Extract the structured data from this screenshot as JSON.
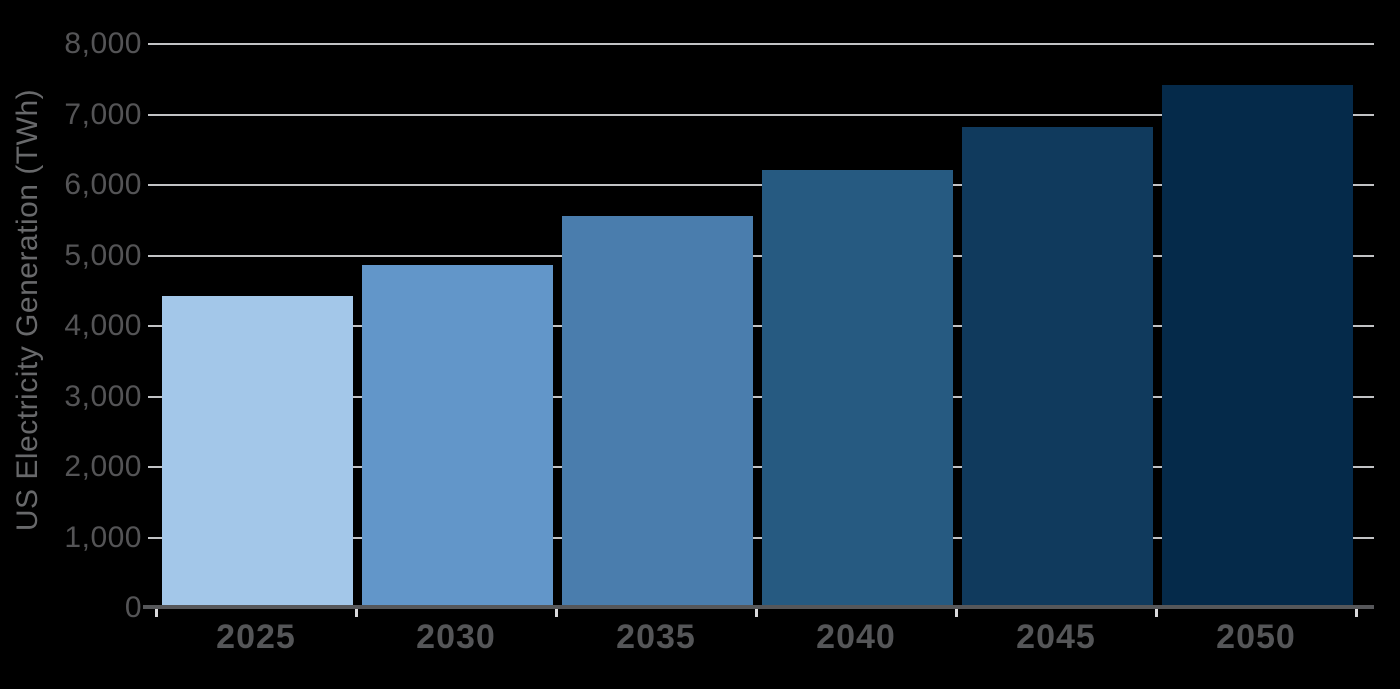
{
  "chart_data": {
    "type": "bar",
    "title": "",
    "ylabel": "US Electricity Generation (TWh)",
    "xlabel": "",
    "categories": [
      "2025",
      "2030",
      "2035",
      "2040",
      "2045",
      "2050"
    ],
    "values": [
      4400,
      4830,
      5530,
      6180,
      6800,
      7390
    ],
    "series": [
      {
        "name": "US Electricity Generation (TWh)",
        "values": [
          4400,
          4830,
          5530,
          6180,
          6800,
          7390
        ]
      }
    ],
    "ylim": [
      0,
      8000
    ],
    "ytick_interval": 1000,
    "ytick_labels": [
      "0",
      "1,000",
      "2,000",
      "3,000",
      "4,000",
      "5,000",
      "6,000",
      "7,000",
      "8,000"
    ],
    "grid": true,
    "legend": false,
    "bar_colors": [
      "#A3C7E9",
      "#6296C9",
      "#4A7DAD",
      "#265A81",
      "#103A5D",
      "#052A4A"
    ]
  },
  "colors": {
    "background": "#000000",
    "gridline": "#C2C3C5",
    "axis_line": "#56575A",
    "below_axis_tick": "#D9D9DB",
    "tick_label_text": "#545456",
    "x_label_text": "#555658",
    "axis_title_text": "#68696B"
  }
}
